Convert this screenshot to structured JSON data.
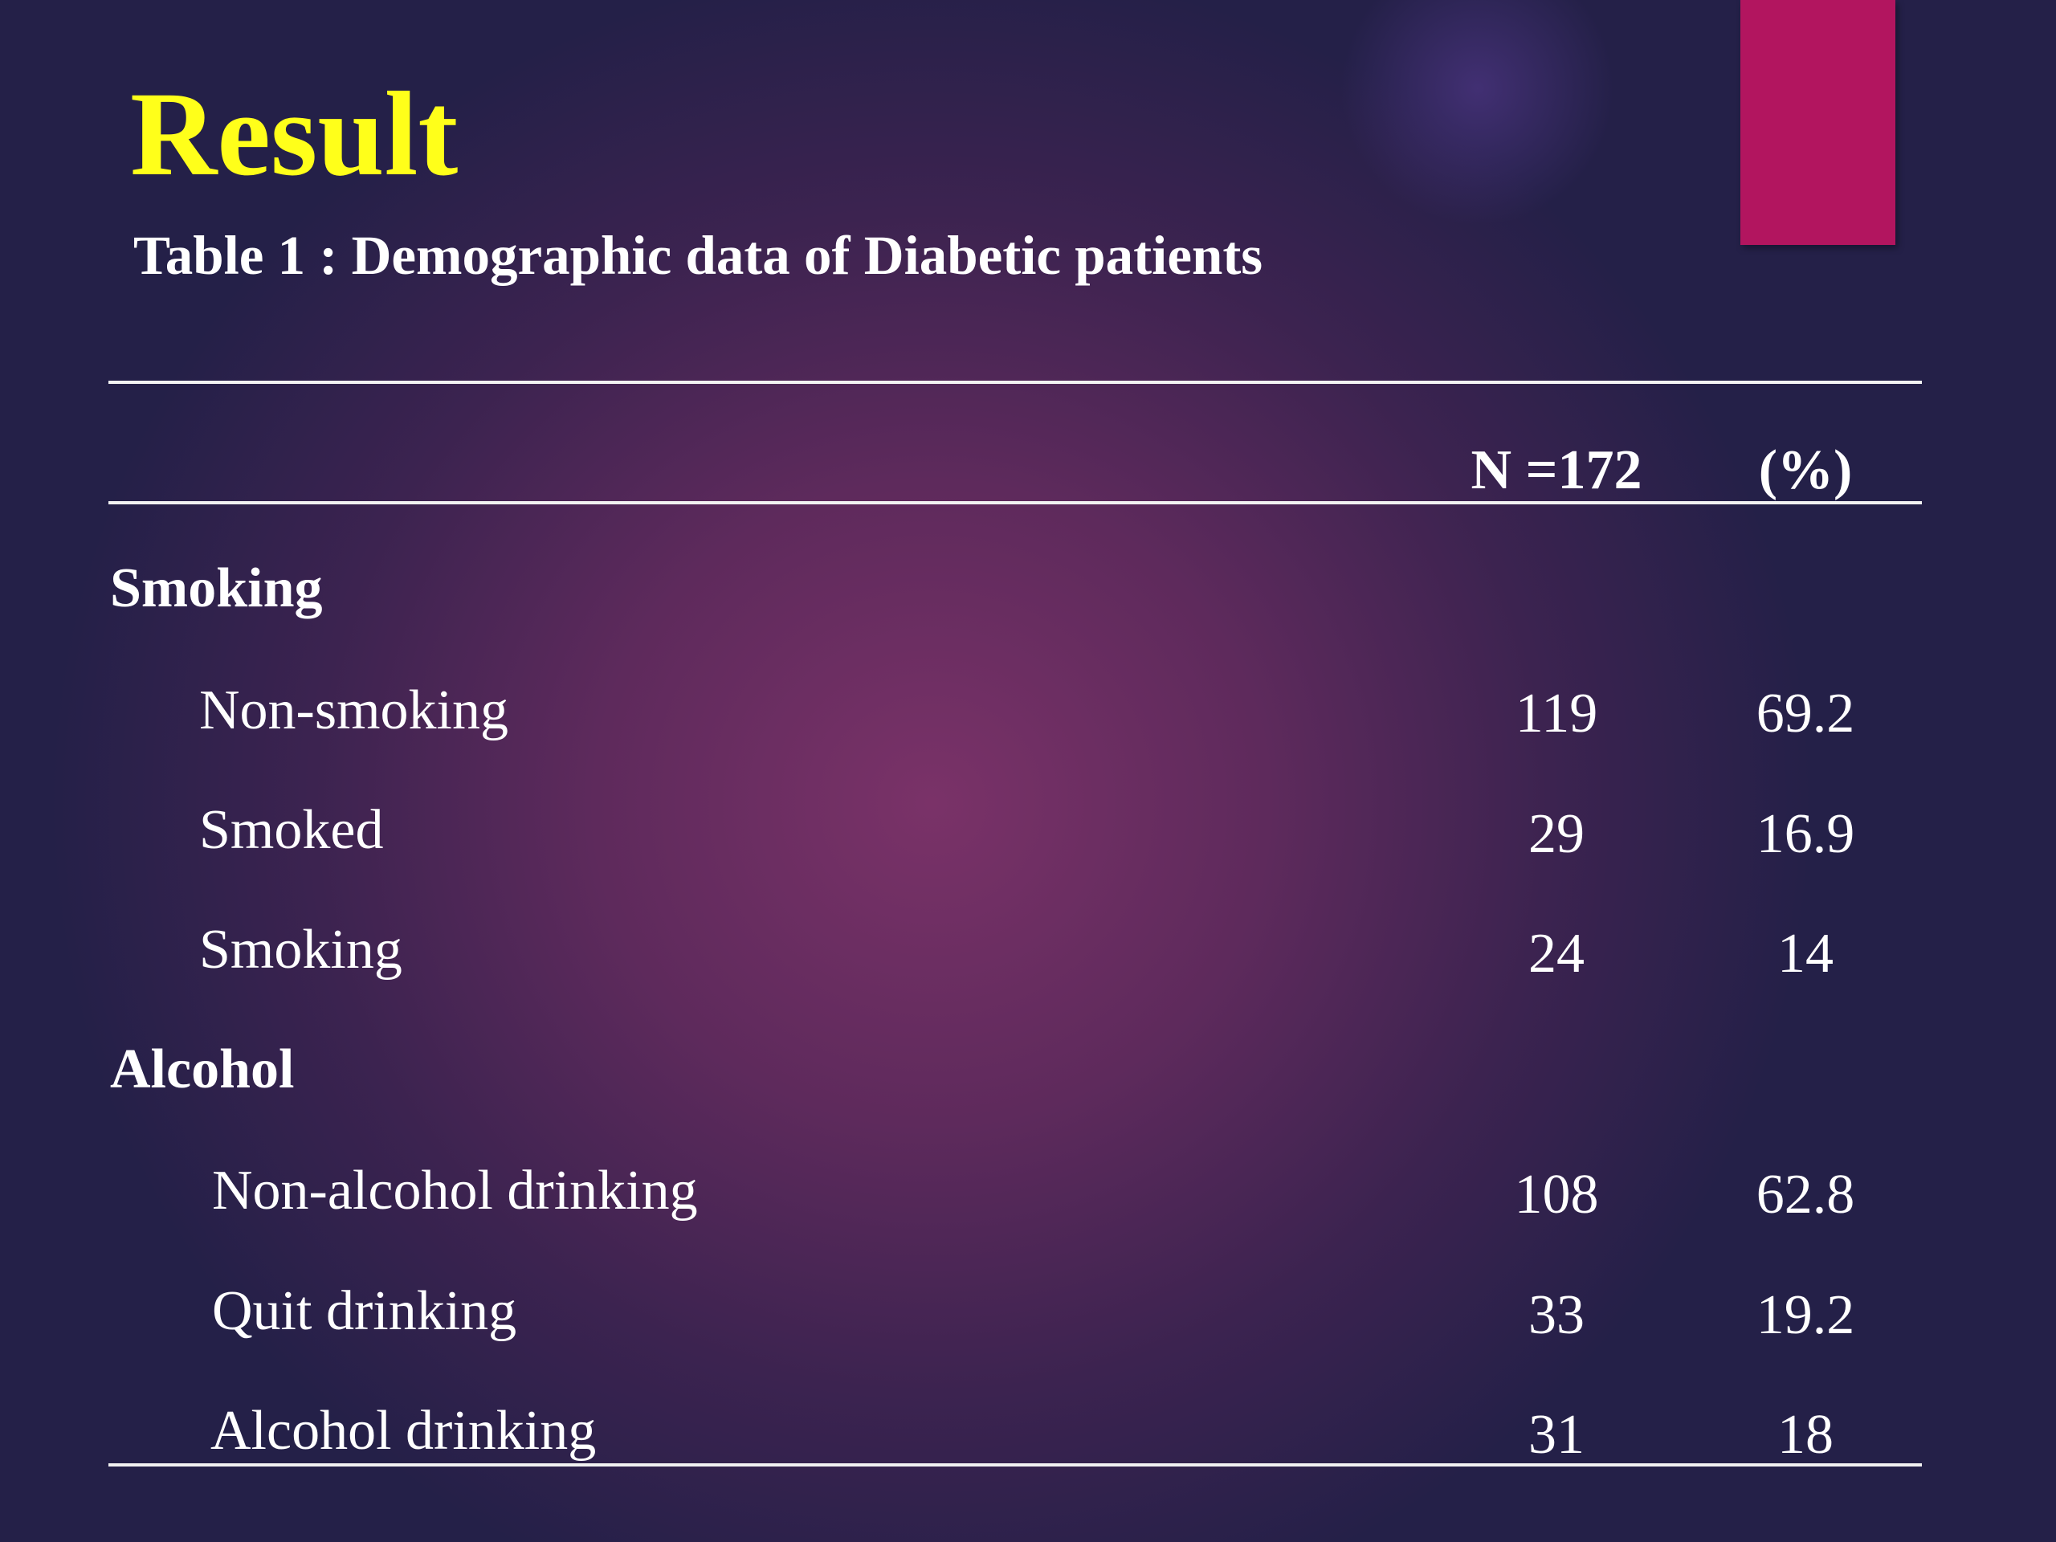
{
  "title": "Result",
  "caption": "Table 1 : Demographic data of Diabetic patients",
  "table": {
    "headers": {
      "n": "N =172",
      "pct": "(%)"
    },
    "groups": [
      {
        "label": "Smoking",
        "rows": [
          {
            "label": "Non-smoking",
            "n": "119",
            "pct": "69.2"
          },
          {
            "label": "Smoked",
            "n": "29",
            "pct": "16.9"
          },
          {
            "label": "Smoking",
            "n": "24",
            "pct": "14"
          }
        ]
      },
      {
        "label": "Alcohol",
        "rows": [
          {
            "label": "Non-alcohol drinking",
            "n": "108",
            "pct": "62.8"
          },
          {
            "label": "Quit drinking",
            "n": "33",
            "pct": "19.2"
          },
          {
            "label": "Alcohol drinking",
            "n": "31",
            "pct": "18"
          }
        ]
      }
    ]
  },
  "colors": {
    "title": "#ffff1a",
    "accent_bar": "#b2155f",
    "text": "#ffffff",
    "background_center": "#7a3268",
    "background_edge": "#242048"
  }
}
